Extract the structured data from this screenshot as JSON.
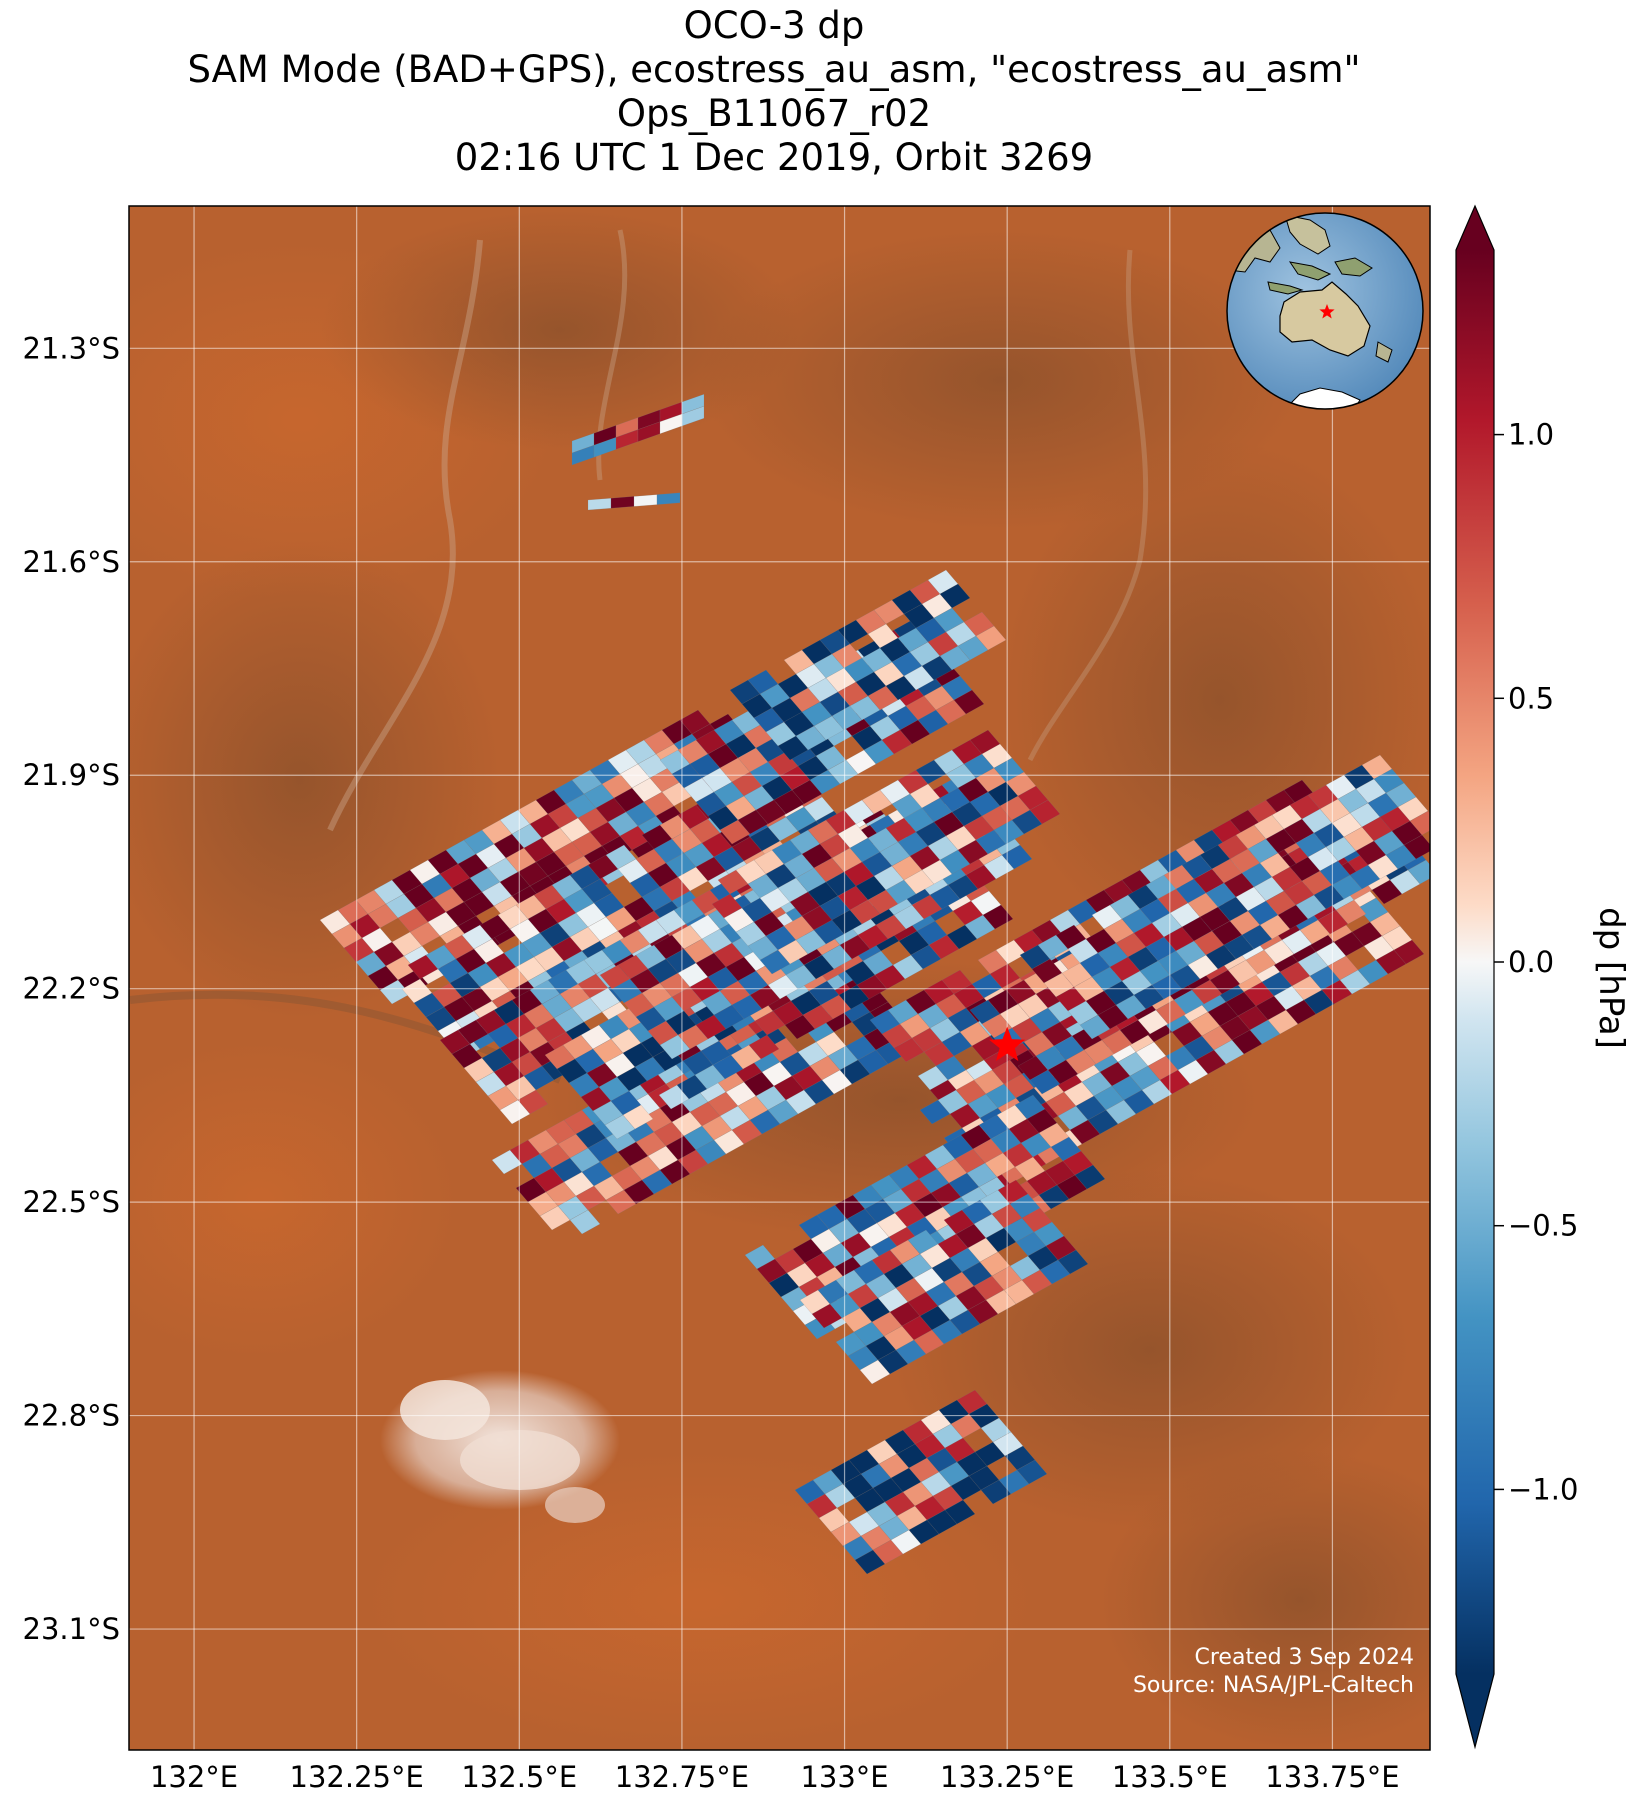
{
  "title": {
    "line1": "OCO-3 dp",
    "line2": "SAM Mode (BAD+GPS), ecostress_au_asm, \"ecostress_au_asm\"",
    "line3": "Ops_B11067_r02",
    "line4": "02:16 UTC 1 Dec 2019, Orbit 3269"
  },
  "map": {
    "lon_range": [
      131.9,
      133.9
    ],
    "lat_range": [
      -23.27,
      -21.1
    ],
    "x_ticks": [
      {
        "value": 132.0,
        "label": "132°E"
      },
      {
        "value": 132.25,
        "label": "132.25°E"
      },
      {
        "value": 132.5,
        "label": "132.5°E"
      },
      {
        "value": 132.75,
        "label": "132.75°E"
      },
      {
        "value": 133.0,
        "label": "133°E"
      },
      {
        "value": 133.25,
        "label": "133.25°E"
      },
      {
        "value": 133.5,
        "label": "133.5°E"
      },
      {
        "value": 133.75,
        "label": "133.75°E"
      }
    ],
    "y_ticks": [
      {
        "value": -21.3,
        "label": "21.3°S"
      },
      {
        "value": -21.6,
        "label": "21.6°S"
      },
      {
        "value": -21.9,
        "label": "21.9°S"
      },
      {
        "value": -22.2,
        "label": "22.2°S"
      },
      {
        "value": -22.5,
        "label": "22.5°S"
      },
      {
        "value": -22.8,
        "label": "22.8°S"
      },
      {
        "value": -23.1,
        "label": "23.1°S"
      }
    ],
    "gridlines": true,
    "background": "satellite imagery, arid red desert",
    "target_marker": {
      "lon": 133.25,
      "lat": -22.28,
      "color": "#ff0000",
      "icon": "star-icon"
    }
  },
  "colorbar": {
    "label": "dp [hPa]",
    "range": [
      -1.35,
      1.35
    ],
    "extend": "both",
    "colormap": "RdBu_r",
    "ticks": [
      {
        "value": 1.0,
        "label": "1.0"
      },
      {
        "value": 0.5,
        "label": "0.5"
      },
      {
        "value": 0.0,
        "label": "0.0"
      },
      {
        "value": -0.5,
        "label": "−0.5"
      },
      {
        "value": -1.0,
        "label": "−1.0"
      }
    ]
  },
  "inset_globe": {
    "icon": "globe-icon",
    "marker_color": "#ff0000",
    "region": "Australia"
  },
  "credits": {
    "created": "Created 3 Sep 2024",
    "source": "Source: NASA/JPL-Caltech"
  }
}
